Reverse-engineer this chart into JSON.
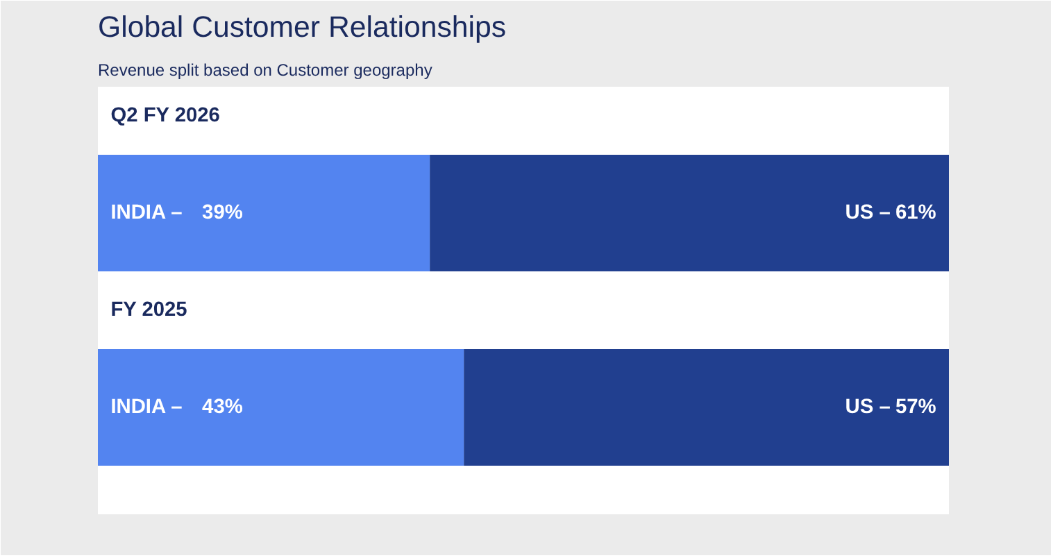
{
  "chart_data": {
    "type": "bar",
    "orientation": "horizontal",
    "stacked": true,
    "title": "Global Customer Relationships",
    "subtitle": "Revenue split based on Customer geography",
    "categories": [
      "Q2 FY 2026",
      "FY 2025"
    ],
    "tick_labels": false,
    "grid": false,
    "series": [
      {
        "name": "INDIA –",
        "color": "#5384f0",
        "values": [
          39,
          43
        ],
        "value_labels": [
          "39%",
          "43%"
        ]
      },
      {
        "name": "US –",
        "color": "#213f8f",
        "values": [
          61,
          57
        ],
        "value_labels": [
          "61%",
          "57%"
        ]
      }
    ]
  }
}
